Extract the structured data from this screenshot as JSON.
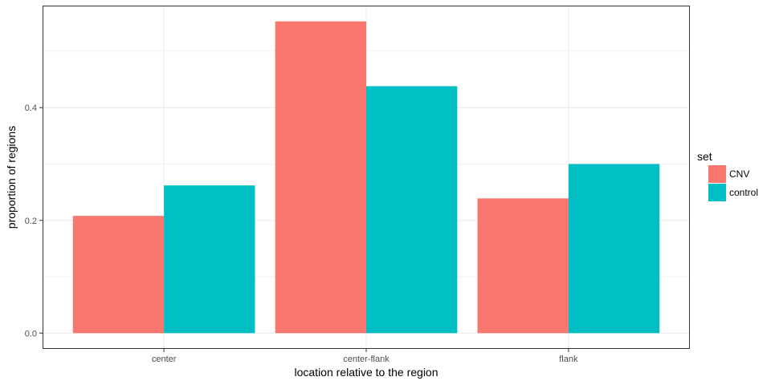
{
  "chart_data": {
    "type": "bar",
    "categories": [
      "center",
      "center-flank",
      "flank"
    ],
    "series": [
      {
        "name": "CNV",
        "color": "#F8766D",
        "values": [
          0.208,
          0.553,
          0.239
        ]
      },
      {
        "name": "control",
        "color": "#00BFC4",
        "values": [
          0.262,
          0.438,
          0.3
        ]
      }
    ],
    "xlabel": "location relative to the region",
    "ylabel": "proportion of regions",
    "ylim": [
      -0.028,
      0.581
    ],
    "yticks": [
      0.0,
      0.2,
      0.4
    ],
    "ytick_labels": [
      "0.0",
      "0.2",
      "0.4"
    ],
    "grid": true,
    "legend": {
      "title": "set",
      "position": "right"
    }
  }
}
